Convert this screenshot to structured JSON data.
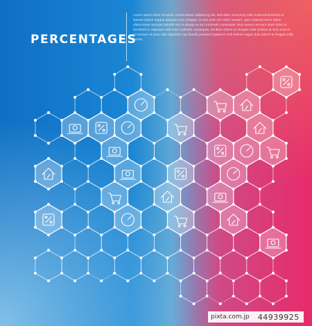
{
  "title": "PERCENTAGES",
  "body_text": "Lorem ipsum dolor sit amet, consectetuer adipiscing elit, sed diam nonummy nibh euismod tincidunt ut laoreet dolore magna aliquam erat volutpat. Ut wisi enim ad minim veniam, quis nostrud exerci tation ullamcorper suscipit lobortis nisl ut aliquip ex ea commodo consequat. Duis autem vel eum iriure dolor in hendrerit in vulputate velit esse molestie consequat, vel illum dolore eu feugiat nulla facilisis at vero eros et accumsan et iusto odio dignissim qui blandit praesent luptatum zzril delenit augue duis dolore te feugait nulla facilisi.",
  "watermark": {
    "brand": "pixta.com.jp",
    "id": "44939925"
  },
  "colors": {
    "blue": "#1a86d4",
    "magenta": "#e72b6a",
    "line": "#ffffff"
  },
  "icons": [
    "percentage-tag-icon",
    "car-percentage-icon",
    "bar-chart-icon",
    "moneybag-percentage-icon",
    "credit-card-percentage-icon",
    "speedometer-icon",
    "cart-percentage-icon",
    "house-percentage-icon",
    "hand-coin-icon",
    "bank-icon",
    "laptop-discount-icon",
    "smartphone-icon",
    "coupon-icon",
    "growth-chart-icon",
    "document-icon"
  ]
}
